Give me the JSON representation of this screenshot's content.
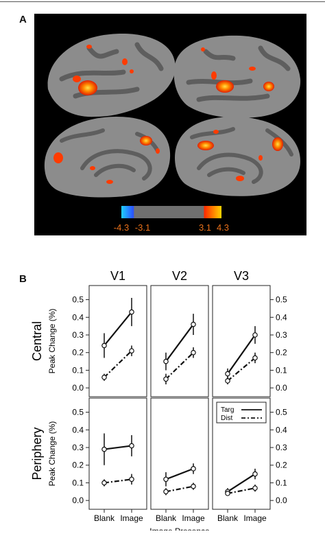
{
  "figure": {
    "panel_a_letter": "A",
    "panel_b_letter": "B"
  },
  "brain_panel": {
    "colorbar_labels": [
      "-4.3",
      "-3.1",
      "3.1",
      "4.3"
    ],
    "colors": {
      "background": "#000000",
      "cortex_light": "#8c8c8c",
      "cortex_dark": "#5e5e5e",
      "activation_hot": "#ff3b00",
      "activation_peak": "#ffe14a",
      "activation_cold": "#2a60ff",
      "colorbar_label": "#e8701a"
    }
  },
  "chart_data": {
    "type": "line",
    "column_titles": [
      "V1",
      "V2",
      "V3"
    ],
    "row_titles": [
      "Central",
      "Periphery"
    ],
    "ylabel": "Peak Change (%)",
    "xlabel": "Image Presence",
    "categories": [
      "Blank",
      "Image"
    ],
    "y_ticks": [
      "0.0",
      "0.1",
      "0.2",
      "0.3",
      "0.4",
      "0.5"
    ],
    "ylim": [
      -0.05,
      0.58
    ],
    "legend": {
      "entries": [
        "Targ",
        "Dist"
      ],
      "placement": "top-right of periphery V3 panel"
    },
    "series_styles": {
      "Targ": "solid",
      "Dist": "dash-dot"
    },
    "panels": [
      {
        "row": "Central",
        "column": "V1",
        "series": [
          {
            "name": "Targ",
            "values": [
              0.24,
              0.43
            ],
            "error": [
              0.07,
              0.08
            ]
          },
          {
            "name": "Dist",
            "values": [
              0.06,
              0.21
            ],
            "error": [
              0.02,
              0.03
            ]
          }
        ]
      },
      {
        "row": "Central",
        "column": "V2",
        "series": [
          {
            "name": "Targ",
            "values": [
              0.15,
              0.36
            ],
            "error": [
              0.05,
              0.06
            ]
          },
          {
            "name": "Dist",
            "values": [
              0.05,
              0.2
            ],
            "error": [
              0.03,
              0.03
            ]
          }
        ]
      },
      {
        "row": "Central",
        "column": "V3",
        "series": [
          {
            "name": "Targ",
            "values": [
              0.08,
              0.3
            ],
            "error": [
              0.03,
              0.05
            ]
          },
          {
            "name": "Dist",
            "values": [
              0.04,
              0.17
            ],
            "error": [
              0.02,
              0.03
            ]
          }
        ]
      },
      {
        "row": "Periphery",
        "column": "V1",
        "series": [
          {
            "name": "Targ",
            "values": [
              0.29,
              0.31
            ],
            "error": [
              0.09,
              0.06
            ]
          },
          {
            "name": "Dist",
            "values": [
              0.1,
              0.12
            ],
            "error": [
              0.02,
              0.03
            ]
          }
        ]
      },
      {
        "row": "Periphery",
        "column": "V2",
        "series": [
          {
            "name": "Targ",
            "values": [
              0.12,
              0.18
            ],
            "error": [
              0.04,
              0.03
            ]
          },
          {
            "name": "Dist",
            "values": [
              0.05,
              0.08
            ],
            "error": [
              0.02,
              0.02
            ]
          }
        ]
      },
      {
        "row": "Periphery",
        "column": "V3",
        "series": [
          {
            "name": "Targ",
            "values": [
              0.05,
              0.15
            ],
            "error": [
              0.02,
              0.03
            ]
          },
          {
            "name": "Dist",
            "values": [
              0.04,
              0.07
            ],
            "error": [
              0.01,
              0.02
            ]
          }
        ]
      }
    ]
  }
}
